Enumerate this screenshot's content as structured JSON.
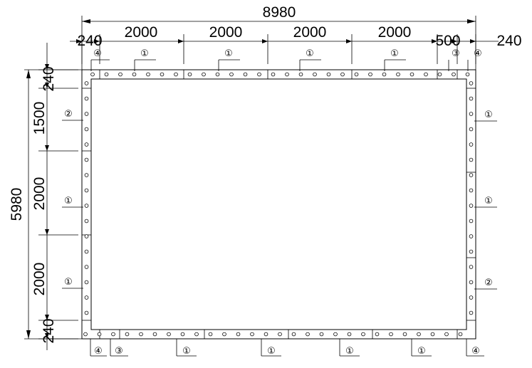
{
  "dimensions": {
    "overall_width": "8980",
    "overall_height": "5980",
    "top_segments": [
      "240",
      "2000",
      "2000",
      "2000",
      "2000",
      "500",
      "240"
    ],
    "left_segments": [
      "240",
      "1500",
      "2000",
      "2000",
      "240"
    ]
  },
  "callouts": {
    "top": [
      "④",
      "①",
      "①",
      "①",
      "①",
      "③",
      "④"
    ],
    "left": [
      "②",
      "①",
      "①"
    ],
    "right": [
      "①",
      "①",
      "②"
    ],
    "bottom": [
      "④",
      "③",
      "①",
      "①",
      "①",
      "①",
      "④"
    ]
  }
}
